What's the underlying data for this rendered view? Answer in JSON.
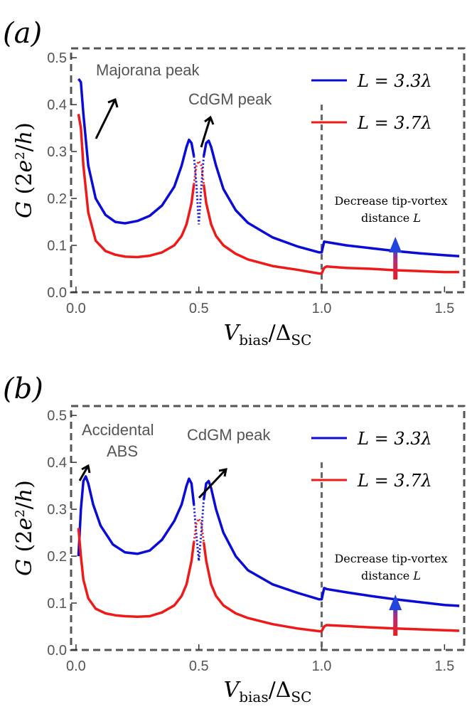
{
  "colors": {
    "blue": "#0b0bd6",
    "red": "#ee1a1a",
    "frame": "#555555",
    "vline": "#666666"
  },
  "chart_data": [
    {
      "panel": "(a)",
      "type": "line",
      "xlabel": "V_bias/Δ_SC",
      "ylabel": "G (2e²/h)",
      "xlim": [
        -0.02,
        1.58
      ],
      "ylim": [
        0.0,
        0.52
      ],
      "xticks": [
        "0.0",
        "0.5",
        "1.0",
        "1.5"
      ],
      "yticks": [
        "0.0",
        "0.1",
        "0.2",
        "0.3",
        "0.4",
        "0.5"
      ],
      "grid": false,
      "legend_position": "top-right",
      "vline_x": 1.0,
      "annotations": {
        "majorana": "Majorana peak",
        "cdgm": "CdGM peak",
        "note_line1": "Decrease tip-vortex",
        "note_line2": "distance L"
      },
      "series": [
        {
          "name": "L = 3.3λ",
          "color": "blue",
          "x": [
            0.01,
            0.02,
            0.03,
            0.05,
            0.08,
            0.12,
            0.16,
            0.2,
            0.25,
            0.3,
            0.35,
            0.4,
            0.43,
            0.45,
            0.46,
            0.47,
            0.48,
            0.49,
            0.5,
            0.51,
            0.52,
            0.53,
            0.54,
            0.55,
            0.57,
            0.6,
            0.65,
            0.7,
            0.8,
            0.9,
            0.99,
            1.0,
            1.01,
            1.02,
            1.1,
            1.2,
            1.3,
            1.4,
            1.5,
            1.56
          ],
          "y": [
            0.455,
            0.448,
            0.38,
            0.27,
            0.2,
            0.165,
            0.15,
            0.147,
            0.152,
            0.163,
            0.185,
            0.225,
            0.27,
            0.31,
            0.325,
            0.318,
            0.29,
            0.23,
            0.145,
            0.225,
            0.29,
            0.318,
            0.323,
            0.31,
            0.27,
            0.22,
            0.175,
            0.148,
            0.117,
            0.098,
            0.085,
            0.085,
            0.108,
            0.107,
            0.1,
            0.094,
            0.088,
            0.083,
            0.079,
            0.077
          ]
        },
        {
          "name": "L = 3.7λ",
          "color": "red",
          "x": [
            0.01,
            0.02,
            0.03,
            0.05,
            0.08,
            0.12,
            0.16,
            0.2,
            0.25,
            0.3,
            0.35,
            0.4,
            0.43,
            0.45,
            0.47,
            0.48,
            0.49,
            0.5,
            0.51,
            0.52,
            0.53,
            0.55,
            0.57,
            0.6,
            0.65,
            0.7,
            0.8,
            0.9,
            0.99,
            1.0,
            1.01,
            1.02,
            1.1,
            1.2,
            1.3,
            1.4,
            1.5,
            1.56
          ],
          "y": [
            0.38,
            0.35,
            0.27,
            0.17,
            0.11,
            0.088,
            0.08,
            0.076,
            0.075,
            0.078,
            0.085,
            0.1,
            0.12,
            0.145,
            0.19,
            0.23,
            0.27,
            0.28,
            0.27,
            0.23,
            0.19,
            0.145,
            0.12,
            0.1,
            0.082,
            0.07,
            0.056,
            0.048,
            0.04,
            0.04,
            0.052,
            0.055,
            0.052,
            0.05,
            0.047,
            0.045,
            0.043,
            0.043
          ]
        }
      ]
    },
    {
      "panel": "(b)",
      "type": "line",
      "xlabel": "V_bias/Δ_SC",
      "ylabel": "G (2e²/h)",
      "xlim": [
        -0.02,
        1.58
      ],
      "ylim": [
        0.0,
        0.52
      ],
      "xticks": [
        "0.0",
        "0.5",
        "1.0",
        "1.5"
      ],
      "yticks": [
        "0.0",
        "0.1",
        "0.2",
        "0.3",
        "0.4",
        "0.5"
      ],
      "grid": false,
      "legend_position": "top-right",
      "vline_x": 1.0,
      "annotations": {
        "abs_line1": "Accidental",
        "abs_line2": "ABS",
        "cdgm": "CdGM peak",
        "note_line1": "Decrease tip-vortex",
        "note_line2": "distance L"
      },
      "series": [
        {
          "name": "L = 3.3λ",
          "color": "blue",
          "x": [
            0.01,
            0.02,
            0.03,
            0.04,
            0.05,
            0.07,
            0.1,
            0.15,
            0.2,
            0.25,
            0.3,
            0.35,
            0.4,
            0.43,
            0.45,
            0.46,
            0.47,
            0.48,
            0.49,
            0.5,
            0.51,
            0.52,
            0.53,
            0.54,
            0.55,
            0.57,
            0.6,
            0.65,
            0.7,
            0.8,
            0.9,
            0.99,
            1.0,
            1.01,
            1.02,
            1.1,
            1.2,
            1.3,
            1.4,
            1.5,
            1.56
          ],
          "y": [
            0.2,
            0.3,
            0.36,
            0.37,
            0.355,
            0.31,
            0.265,
            0.225,
            0.208,
            0.205,
            0.212,
            0.235,
            0.275,
            0.31,
            0.35,
            0.365,
            0.355,
            0.31,
            0.245,
            0.19,
            0.25,
            0.32,
            0.355,
            0.36,
            0.345,
            0.3,
            0.25,
            0.2,
            0.17,
            0.14,
            0.122,
            0.108,
            0.108,
            0.132,
            0.13,
            0.123,
            0.115,
            0.108,
            0.102,
            0.096,
            0.094
          ]
        },
        {
          "name": "L = 3.7λ",
          "color": "red",
          "x": [
            0.01,
            0.02,
            0.03,
            0.05,
            0.08,
            0.12,
            0.16,
            0.2,
            0.25,
            0.3,
            0.35,
            0.4,
            0.43,
            0.45,
            0.47,
            0.48,
            0.49,
            0.5,
            0.51,
            0.52,
            0.53,
            0.55,
            0.57,
            0.6,
            0.65,
            0.7,
            0.8,
            0.9,
            0.99,
            1.0,
            1.01,
            1.02,
            1.1,
            1.2,
            1.3,
            1.4,
            1.5,
            1.56
          ],
          "y": [
            0.26,
            0.2,
            0.15,
            0.11,
            0.088,
            0.078,
            0.074,
            0.072,
            0.071,
            0.072,
            0.08,
            0.095,
            0.115,
            0.14,
            0.19,
            0.23,
            0.27,
            0.28,
            0.27,
            0.23,
            0.19,
            0.14,
            0.115,
            0.095,
            0.078,
            0.068,
            0.055,
            0.046,
            0.04,
            0.04,
            0.05,
            0.053,
            0.051,
            0.048,
            0.046,
            0.044,
            0.042,
            0.041
          ]
        }
      ]
    }
  ]
}
